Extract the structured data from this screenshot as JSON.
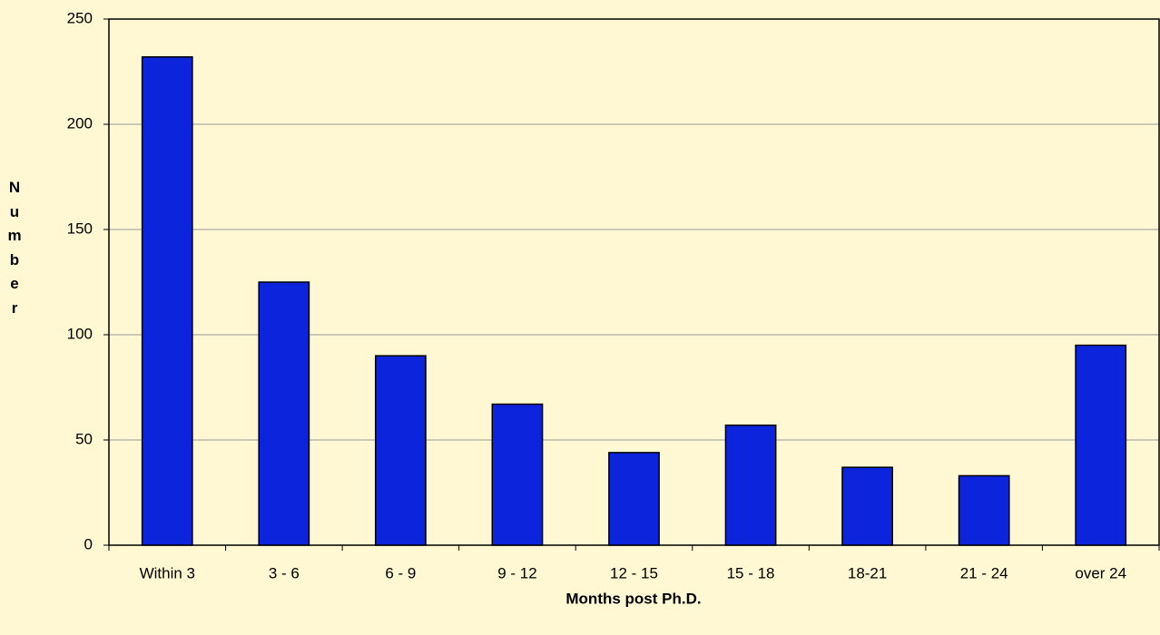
{
  "chart_data": {
    "type": "bar",
    "categories": [
      "Within 3",
      "3 - 6",
      "6 - 9",
      "9 - 12",
      "12 - 15",
      "15 - 18",
      "18-21",
      "21 - 24",
      "over 24"
    ],
    "values": [
      232,
      125,
      90,
      67,
      44,
      57,
      37,
      33,
      95
    ],
    "color": "#0b24dc",
    "x_label": "Months post Ph.D.",
    "y_label": "Number",
    "ylim": [
      0,
      250
    ],
    "yticks": [
      0,
      50,
      100,
      150,
      200,
      250
    ],
    "grid": true
  }
}
